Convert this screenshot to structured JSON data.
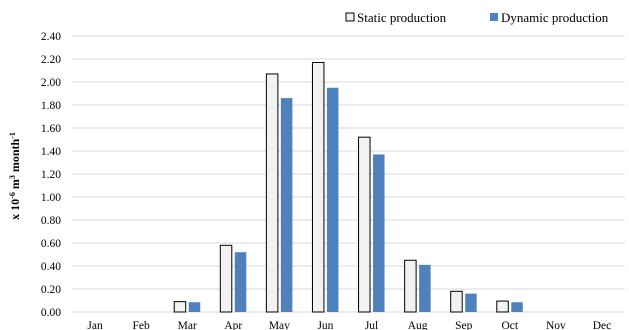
{
  "chart_data": {
    "type": "bar",
    "categories": [
      "Jan",
      "Feb",
      "Mar",
      "Apr",
      "May",
      "Jun",
      "Jul",
      "Aug",
      "Sep",
      "Oct",
      "Nov",
      "Dec"
    ],
    "series": [
      {
        "name": "Static production",
        "values": [
          0,
          0,
          0.09,
          0.58,
          2.07,
          2.17,
          1.52,
          0.45,
          0.18,
          0.095,
          0,
          0
        ],
        "color": "#f2f2f2",
        "stroke": "#000000"
      },
      {
        "name": "Dynamic production",
        "values": [
          0,
          0,
          0.085,
          0.52,
          1.86,
          1.95,
          1.37,
          0.41,
          0.16,
          0.085,
          0,
          0
        ],
        "color": "#4f81bd",
        "stroke": "#4f81bd"
      }
    ],
    "ylabel_base": "x 10",
    "ylabel_exp1": "-6",
    "ylabel_unit": " m",
    "ylabel_exp2": "3",
    "ylabel_tail": " month",
    "ylabel_exp3": "-1",
    "ylim": [
      0,
      2.4
    ],
    "yticks": [
      "0.00",
      "0.20",
      "0.40",
      "0.60",
      "0.80",
      "1.00",
      "1.20",
      "1.40",
      "1.60",
      "1.80",
      "2.00",
      "2.20",
      "2.40"
    ],
    "grid": true,
    "legend_position": "top-right"
  }
}
